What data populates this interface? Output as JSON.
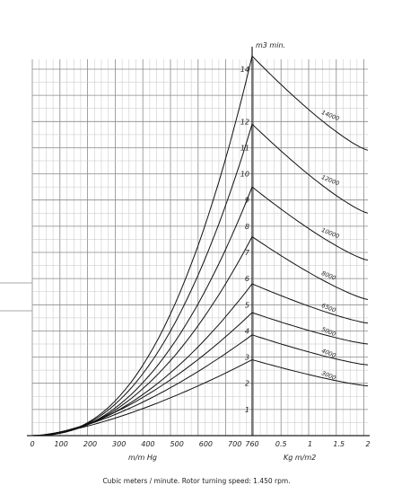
{
  "caption": "Cubic meters / minute. Rotor turning speed: 1.450 rpm.",
  "chart_data": {
    "type": "line",
    "left_panel": {
      "x_ticks": [
        "0",
        "100",
        "200",
        "300",
        "400",
        "500",
        "600",
        "700",
        "760"
      ],
      "x_unit": "m/m Hg",
      "x_range": [
        0,
        760
      ]
    },
    "right_panel": {
      "x_ticks": [
        "0.5",
        "1",
        "1.5",
        "2"
      ],
      "x_unit": "Kg m/m2",
      "x_range": [
        0,
        2
      ]
    },
    "y_unit": "m3  min.",
    "y_ticks": [
      "1",
      "2",
      "3",
      "4",
      "5",
      "6",
      "7",
      "8",
      "9",
      "10",
      "11",
      "12",
      "14"
    ],
    "y_range": [
      0,
      14
    ],
    "grid": true,
    "series": [
      {
        "name": "3000",
        "peak": 2.9,
        "left_exponent": 1.5,
        "right_end": 1.9
      },
      {
        "name": "4000",
        "peak": 3.85,
        "left_exponent": 1.6,
        "right_end": 2.7
      },
      {
        "name": "5000",
        "peak": 4.7,
        "left_exponent": 1.7,
        "right_end": 3.5
      },
      {
        "name": "6500",
        "peak": 5.8,
        "left_exponent": 1.9,
        "right_end": 4.3
      },
      {
        "name": "8000",
        "peak": 7.6,
        "left_exponent": 2.1,
        "right_end": 5.2
      },
      {
        "name": "10000",
        "peak": 9.5,
        "left_exponent": 2.25,
        "right_end": 6.7
      },
      {
        "name": "12000",
        "peak": 11.9,
        "left_exponent": 2.35,
        "right_end": 8.5
      },
      {
        "name": "14000",
        "peak": 14.5,
        "left_exponent": 2.45,
        "right_end": 10.9
      }
    ]
  }
}
